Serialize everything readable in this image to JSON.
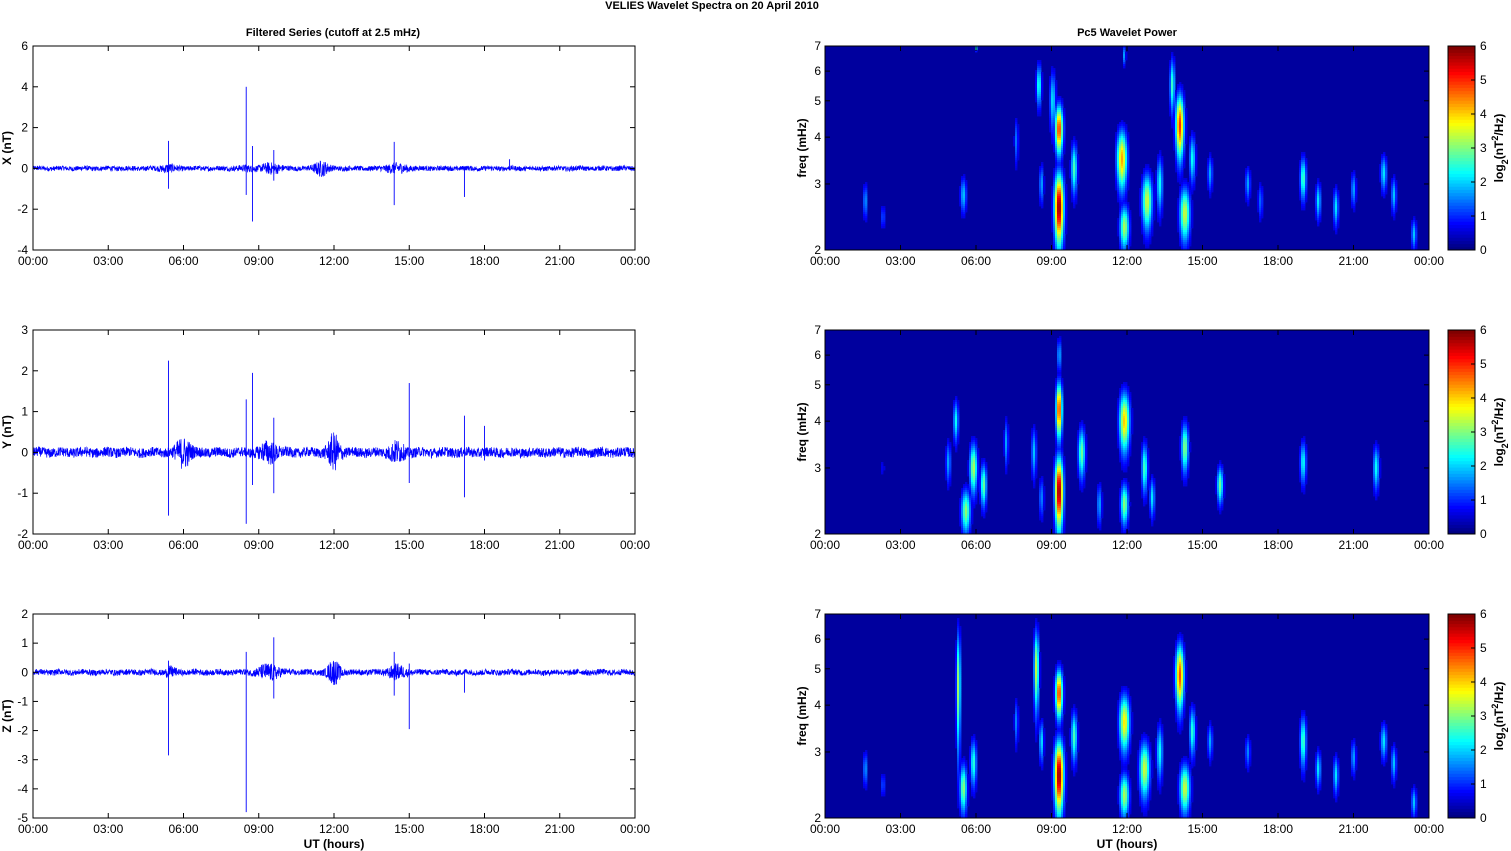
{
  "figure": {
    "title": "VELIES Wavelet Spectra on 20 April     2010",
    "left_title": "Filtered Series (cutoff at 2.5 mHz)",
    "right_title": "Pc5 Wavelet Power",
    "x_tick_labels": [
      "00:00",
      "03:00",
      "06:00",
      "09:00",
      "12:00",
      "15:00",
      "18:00",
      "21:00",
      "00:00"
    ],
    "xlabel": "UT (hours)",
    "freq_label": "freq (mHz)",
    "colorbar_label": "log2(nT2/Hz)",
    "colorbar_label_parts": [
      "log",
      "2",
      "(nT",
      "2",
      "/Hz)"
    ],
    "colors": {
      "trace": "#0000ff",
      "background_low": "#00008f",
      "colormap": "jet"
    }
  },
  "chart_data": [
    {
      "type": "line",
      "title": "Filtered Series (cutoff at 2.5 mHz)",
      "ylabel": "X (nT)",
      "xlabel": "",
      "xlim": [
        0,
        24
      ],
      "ylim": [
        -4,
        6
      ],
      "yticks": [
        -4,
        -2,
        0,
        2,
        4,
        6
      ],
      "noise_amplitude": 0.12,
      "series": [
        {
          "values_description_free": true,
          "bursts": [
            [
              5.4,
              0.5,
              0.35
            ],
            [
              8.5,
              0.3,
              0.3
            ],
            [
              9.5,
              0.8,
              0.4
            ],
            [
              11.5,
              1.2,
              0.3
            ],
            [
              14.5,
              0.7,
              0.45
            ]
          ],
          "spikes": [
            [
              5.4,
              1.35,
              -1.0
            ],
            [
              8.5,
              4.0,
              -1.3
            ],
            [
              8.75,
              1.1,
              -2.6
            ],
            [
              9.6,
              0.9,
              -0.6
            ],
            [
              14.4,
              1.3,
              -1.8
            ],
            [
              17.2,
              0.1,
              -1.4
            ],
            [
              19.0,
              0.45,
              -0.1
            ]
          ]
        }
      ]
    },
    {
      "type": "line",
      "ylabel": "Y (nT)",
      "xlabel": "",
      "xlim": [
        0,
        24
      ],
      "ylim": [
        -2,
        3
      ],
      "yticks": [
        -2,
        -1,
        0,
        1,
        2,
        3
      ],
      "noise_amplitude": 0.12,
      "series": [
        {
          "values_description_free": true,
          "bursts": [
            [
              6.0,
              1.2,
              0.3
            ],
            [
              9.4,
              0.8,
              0.35
            ],
            [
              12.0,
              1.5,
              0.25
            ],
            [
              14.5,
              0.8,
              0.3
            ]
          ],
          "spikes": [
            [
              5.4,
              2.25,
              -1.55
            ],
            [
              8.5,
              1.3,
              -1.75
            ],
            [
              8.75,
              1.95,
              -0.8
            ],
            [
              9.6,
              0.85,
              -1.0
            ],
            [
              15.0,
              1.7,
              -0.75
            ],
            [
              17.2,
              0.9,
              -1.1
            ],
            [
              18.0,
              0.65,
              -0.2
            ]
          ]
        }
      ]
    },
    {
      "type": "line",
      "ylabel": "Z (nT)",
      "xlabel": "UT (hours)",
      "xlim": [
        0,
        24
      ],
      "ylim": [
        -5,
        2
      ],
      "yticks": [
        -5,
        -4,
        -3,
        -2,
        -1,
        0,
        1,
        2
      ],
      "noise_amplitude": 0.1,
      "series": [
        {
          "values_description_free": true,
          "bursts": [
            [
              5.5,
              0.5,
              0.2
            ],
            [
              9.4,
              0.9,
              0.45
            ],
            [
              12.0,
              1.5,
              0.25
            ],
            [
              14.5,
              0.8,
              0.35
            ]
          ],
          "spikes": [
            [
              5.4,
              0.4,
              -2.85
            ],
            [
              8.5,
              0.7,
              -4.8
            ],
            [
              9.6,
              1.2,
              -0.9
            ],
            [
              14.4,
              0.7,
              -0.8
            ],
            [
              15.0,
              0.3,
              -1.95
            ],
            [
              17.2,
              0.05,
              -0.7
            ]
          ]
        }
      ]
    },
    {
      "type": "heatmap",
      "title": "Pc5 Wavelet Power",
      "ylabel": "freq (mHz)",
      "xlabel": "",
      "xlim": [
        0,
        24
      ],
      "ylim": [
        2,
        7
      ],
      "yscale": "log",
      "yticks": [
        2,
        3,
        4,
        5,
        6,
        7
      ],
      "clim": [
        0,
        6
      ],
      "colorbar_ticks": [
        0,
        1,
        2,
        3,
        4,
        5,
        6
      ],
      "blobs": [
        [
          1.6,
          2.7,
          0.09,
          0.28,
          1.5
        ],
        [
          2.3,
          2.45,
          0.1,
          0.18,
          1.0
        ],
        [
          5.5,
          2.8,
          0.12,
          0.3,
          1.8
        ],
        [
          7.6,
          3.9,
          0.08,
          0.55,
          1.3
        ],
        [
          8.5,
          5.5,
          0.1,
          0.7,
          2.4
        ],
        [
          8.6,
          3.0,
          0.09,
          0.35,
          1.6
        ],
        [
          9.05,
          5.0,
          0.12,
          0.9,
          2.0
        ],
        [
          9.3,
          2.6,
          0.18,
          0.55,
          6.0
        ],
        [
          9.3,
          4.2,
          0.15,
          0.6,
          5.0
        ],
        [
          9.9,
          3.3,
          0.12,
          0.5,
          2.6
        ],
        [
          11.8,
          3.5,
          0.2,
          0.6,
          4.2
        ],
        [
          11.9,
          2.3,
          0.18,
          0.3,
          3.2
        ],
        [
          12.8,
          2.7,
          0.2,
          0.45,
          3.4
        ],
        [
          13.3,
          3.0,
          0.12,
          0.5,
          2.2
        ],
        [
          13.8,
          5.5,
          0.1,
          0.9,
          2.5
        ],
        [
          14.1,
          4.3,
          0.16,
          0.8,
          5.0
        ],
        [
          14.3,
          2.5,
          0.2,
          0.4,
          3.4
        ],
        [
          14.6,
          3.5,
          0.12,
          0.5,
          2.2
        ],
        [
          15.3,
          3.2,
          0.1,
          0.35,
          1.6
        ],
        [
          16.8,
          3.0,
          0.1,
          0.3,
          1.6
        ],
        [
          17.3,
          2.7,
          0.1,
          0.3,
          1.2
        ],
        [
          19.0,
          3.1,
          0.12,
          0.4,
          2.6
        ],
        [
          19.6,
          2.7,
          0.1,
          0.3,
          2.0
        ],
        [
          20.3,
          2.6,
          0.1,
          0.3,
          2.0
        ],
        [
          21.0,
          2.9,
          0.1,
          0.3,
          1.6
        ],
        [
          22.2,
          3.2,
          0.12,
          0.35,
          2.0
        ],
        [
          22.6,
          2.8,
          0.1,
          0.3,
          1.8
        ],
        [
          23.4,
          2.2,
          0.1,
          0.2,
          1.8
        ],
        [
          6.0,
          6.9,
          0.05,
          0.1,
          2.4
        ],
        [
          11.9,
          6.6,
          0.05,
          0.4,
          1.8
        ]
      ]
    },
    {
      "type": "heatmap",
      "ylabel": "freq (mHz)",
      "xlabel": "",
      "xlim": [
        0,
        24
      ],
      "ylim": [
        2,
        7
      ],
      "yscale": "log",
      "yticks": [
        2,
        3,
        4,
        5,
        6,
        7
      ],
      "clim": [
        0,
        6
      ],
      "colorbar_ticks": [
        0,
        1,
        2,
        3,
        4,
        5,
        6
      ],
      "blobs": [
        [
          4.9,
          3.1,
          0.1,
          0.4,
          1.6
        ],
        [
          5.2,
          4.0,
          0.1,
          0.5,
          2.2
        ],
        [
          5.6,
          2.3,
          0.18,
          0.3,
          3.0
        ],
        [
          5.9,
          3.0,
          0.15,
          0.45,
          3.2
        ],
        [
          6.3,
          2.7,
          0.12,
          0.35,
          2.8
        ],
        [
          7.2,
          3.5,
          0.08,
          0.5,
          1.6
        ],
        [
          8.3,
          3.3,
          0.1,
          0.5,
          1.8
        ],
        [
          8.6,
          2.5,
          0.1,
          0.3,
          1.4
        ],
        [
          9.3,
          2.6,
          0.16,
          0.55,
          6.0
        ],
        [
          9.3,
          4.3,
          0.12,
          0.7,
          5.0
        ],
        [
          9.3,
          6.0,
          0.05,
          0.6,
          2.5
        ],
        [
          10.2,
          3.3,
          0.14,
          0.5,
          2.8
        ],
        [
          10.9,
          2.4,
          0.1,
          0.3,
          1.6
        ],
        [
          11.9,
          4.0,
          0.2,
          0.7,
          4.0
        ],
        [
          11.9,
          2.4,
          0.15,
          0.3,
          3.0
        ],
        [
          12.7,
          3.0,
          0.12,
          0.45,
          2.6
        ],
        [
          13.0,
          2.5,
          0.1,
          0.3,
          2.0
        ],
        [
          14.3,
          3.4,
          0.14,
          0.5,
          3.0
        ],
        [
          15.7,
          2.7,
          0.12,
          0.3,
          2.8
        ],
        [
          19.0,
          3.1,
          0.12,
          0.4,
          2.2
        ],
        [
          21.9,
          3.0,
          0.12,
          0.4,
          2.2
        ],
        [
          2.3,
          3.0,
          0.05,
          0.2,
          0.8
        ]
      ]
    },
    {
      "type": "heatmap",
      "ylabel": "freq (mHz)",
      "xlabel": "UT (hours)",
      "xlim": [
        0,
        24
      ],
      "ylim": [
        2,
        7
      ],
      "yscale": "log",
      "yticks": [
        2,
        3,
        4,
        5,
        6,
        7
      ],
      "clim": [
        0,
        6
      ],
      "colorbar_ticks": [
        0,
        1,
        2,
        3,
        4,
        5,
        6
      ],
      "blobs": [
        [
          1.6,
          2.7,
          0.09,
          0.28,
          1.5
        ],
        [
          2.3,
          2.45,
          0.1,
          0.18,
          1.0
        ],
        [
          5.3,
          4.5,
          0.08,
          1.6,
          3.2
        ],
        [
          5.5,
          2.4,
          0.14,
          0.35,
          3.0
        ],
        [
          5.9,
          2.8,
          0.12,
          0.4,
          2.4
        ],
        [
          7.6,
          3.6,
          0.08,
          0.5,
          1.4
        ],
        [
          8.4,
          5.0,
          0.1,
          1.2,
          3.4
        ],
        [
          8.6,
          3.2,
          0.09,
          0.4,
          2.0
        ],
        [
          9.3,
          2.6,
          0.18,
          0.55,
          6.0
        ],
        [
          9.3,
          4.3,
          0.14,
          0.6,
          5.0
        ],
        [
          9.9,
          3.3,
          0.12,
          0.5,
          2.6
        ],
        [
          11.9,
          3.6,
          0.2,
          0.6,
          3.8
        ],
        [
          11.9,
          2.3,
          0.18,
          0.3,
          3.2
        ],
        [
          12.7,
          2.7,
          0.2,
          0.45,
          3.4
        ],
        [
          13.3,
          3.0,
          0.12,
          0.5,
          2.2
        ],
        [
          14.1,
          4.8,
          0.16,
          0.9,
          4.8
        ],
        [
          14.3,
          2.4,
          0.2,
          0.35,
          3.4
        ],
        [
          14.6,
          3.4,
          0.12,
          0.5,
          2.4
        ],
        [
          15.3,
          3.2,
          0.1,
          0.35,
          1.6
        ],
        [
          16.8,
          3.0,
          0.1,
          0.3,
          1.4
        ],
        [
          19.0,
          3.2,
          0.12,
          0.5,
          2.6
        ],
        [
          19.6,
          2.7,
          0.1,
          0.3,
          2.0
        ],
        [
          20.3,
          2.6,
          0.1,
          0.3,
          2.0
        ],
        [
          21.0,
          2.9,
          0.1,
          0.3,
          1.6
        ],
        [
          22.2,
          3.2,
          0.12,
          0.35,
          2.0
        ],
        [
          22.6,
          2.8,
          0.1,
          0.3,
          1.8
        ],
        [
          23.4,
          2.2,
          0.1,
          0.2,
          1.8
        ]
      ]
    }
  ]
}
